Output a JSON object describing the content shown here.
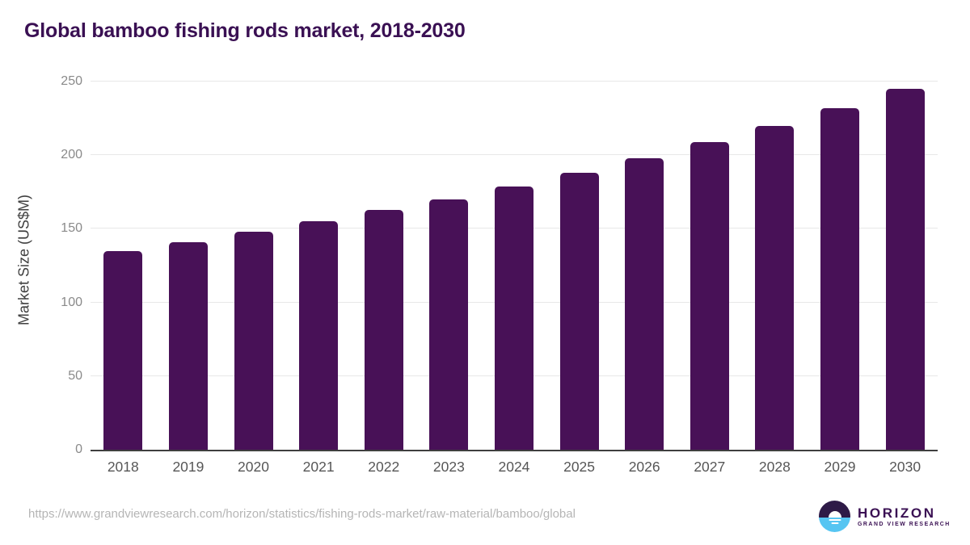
{
  "header": {
    "title": "Global bamboo fishing rods market, 2018-2030"
  },
  "chart_data": {
    "type": "bar",
    "title": "Global bamboo fishing rods market, 2018-2030",
    "categories": [
      "2018",
      "2019",
      "2020",
      "2021",
      "2022",
      "2023",
      "2024",
      "2025",
      "2026",
      "2027",
      "2028",
      "2029",
      "2030"
    ],
    "values": [
      135,
      141,
      148,
      155,
      163,
      170,
      179,
      188,
      198,
      209,
      220,
      232,
      245
    ],
    "xlabel": "",
    "ylabel": "Market Size (US$M)",
    "ylim": [
      0,
      250
    ],
    "ytick_step": 50,
    "grid": true,
    "legend": "none",
    "bar_color": "#481157"
  },
  "footer": {
    "source_url": "https://www.grandviewresearch.com/horizon/statistics/fishing-rods-market/raw-material/bamboo/global",
    "logo": {
      "icon": "horizon-sun-over-water",
      "name": "HORIZON",
      "subtitle": "GRAND VIEW RESEARCH"
    }
  },
  "colors": {
    "title": "#3a1053",
    "bar": "#481157",
    "grid": "#e8e8e8",
    "axis_line": "#3f3f3f",
    "y_tick_label": "#8a8a8a",
    "x_tick_label": "#565656",
    "axis_title": "#3f3f3f",
    "url_text": "#b5b5b5",
    "logo_purple": "#2e1a47",
    "logo_blue": "#56c5f2"
  }
}
